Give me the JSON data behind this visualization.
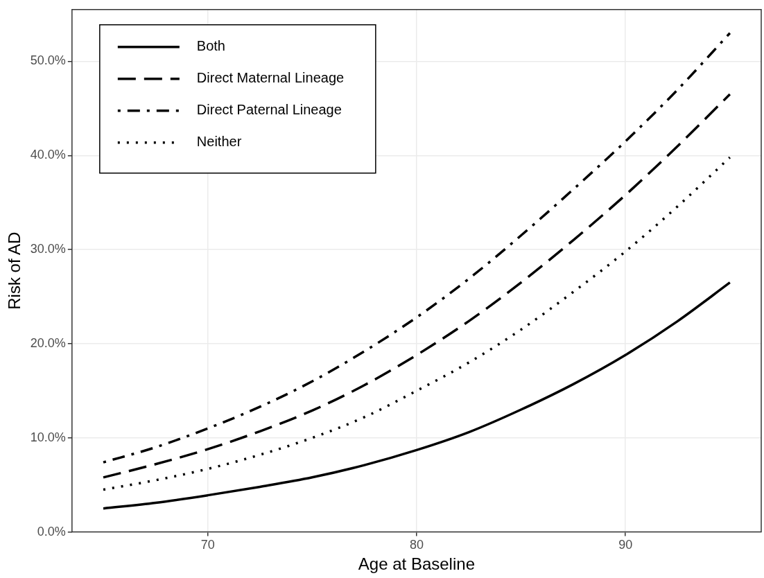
{
  "chart_data": {
    "type": "line",
    "xlabel": "Age at Baseline",
    "ylabel": "Risk of AD",
    "x": [
      65,
      67.5,
      70,
      72.5,
      75,
      77.5,
      80,
      82.5,
      85,
      87.5,
      90,
      92.5,
      95
    ],
    "series": [
      {
        "name": "Both",
        "color": "#000000",
        "line_style": "solid",
        "values": [
          0.025,
          0.031,
          0.039,
          0.048,
          0.058,
          0.071,
          0.087,
          0.106,
          0.13,
          0.157,
          0.188,
          0.224,
          0.265
        ]
      },
      {
        "name": "Direct Maternal Lineage",
        "color": "#000000",
        "line_style": "dashed",
        "values": [
          0.058,
          0.072,
          0.088,
          0.107,
          0.129,
          0.156,
          0.188,
          0.224,
          0.265,
          0.31,
          0.358,
          0.41,
          0.465
        ]
      },
      {
        "name": "Direct Paternal Lineage",
        "color": "#000000",
        "line_style": "dashdot",
        "values": [
          0.074,
          0.09,
          0.11,
          0.133,
          0.16,
          0.192,
          0.228,
          0.269,
          0.315,
          0.364,
          0.415,
          0.47,
          0.53
        ]
      },
      {
        "name": "Neither",
        "color": "#000000",
        "line_style": "dotted",
        "values": [
          0.045,
          0.055,
          0.067,
          0.082,
          0.1,
          0.122,
          0.15,
          0.18,
          0.215,
          0.255,
          0.298,
          0.346,
          0.398
        ]
      }
    ],
    "xlim": [
      63.5,
      96.5
    ],
    "xticks": [
      70,
      80,
      90
    ],
    "ylim": [
      0,
      0.555
    ],
    "yticks": [
      {
        "value": 0,
        "label": "0.0%"
      },
      {
        "value": 0.1,
        "label": "10.0%"
      },
      {
        "value": 0.2,
        "label": "20.0%"
      },
      {
        "value": 0.3,
        "label": "30.0%"
      },
      {
        "value": 0.4,
        "label": "40.0%"
      },
      {
        "value": 0.5,
        "label": "50.0%"
      }
    ],
    "grid": true,
    "legend": "top left"
  }
}
